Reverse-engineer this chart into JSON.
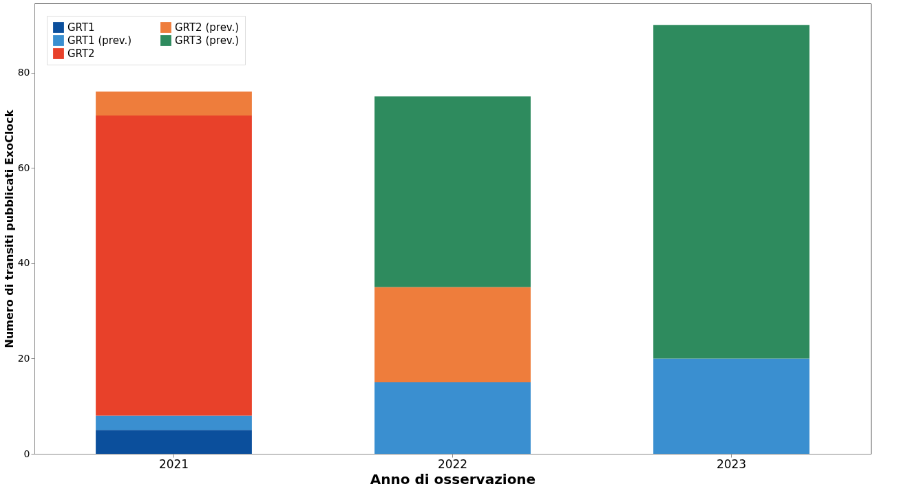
{
  "chart_data": {
    "type": "bar",
    "stacked": true,
    "xlabel": "Anno di osservazione",
    "ylabel": "Numero di transiti pubblicati ExoClock",
    "categories": [
      "2021",
      "2022",
      "2023"
    ],
    "series": [
      {
        "name": "GRT1",
        "color": "#0b4f9c",
        "values": [
          5,
          null,
          null
        ]
      },
      {
        "name": "GRT1 (prev.)",
        "color": "#3a8fd0",
        "values": [
          3,
          15,
          20
        ]
      },
      {
        "name": "GRT2",
        "color": "#e8412a",
        "values": [
          63,
          null,
          null
        ]
      },
      {
        "name": "GRT2 (prev.)",
        "color": "#ee7d3c",
        "values": [
          5,
          20,
          null
        ]
      },
      {
        "name": "GRT3 (prev.)",
        "color": "#2e8b5e",
        "values": [
          null,
          40,
          70
        ]
      }
    ],
    "ylim": [
      0,
      94.5
    ],
    "yticks": [
      0,
      20,
      40,
      60,
      80
    ],
    "legend": "top left"
  }
}
